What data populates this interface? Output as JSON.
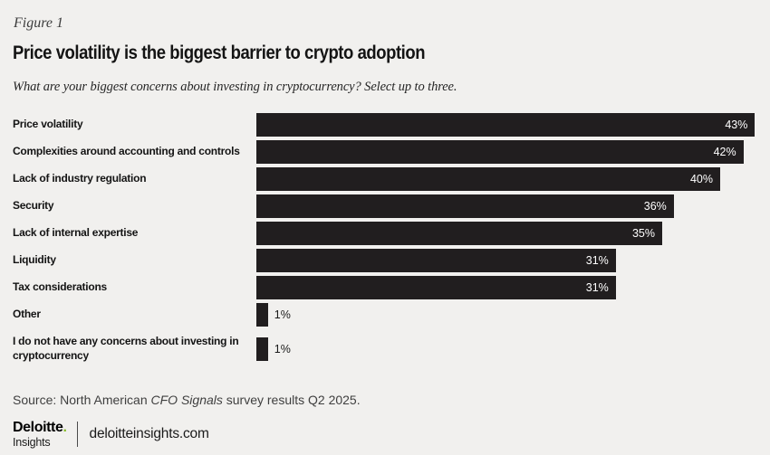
{
  "figure": {
    "label": "Figure 1"
  },
  "title": "Price volatility is the biggest barrier to crypto adoption",
  "subtitle": "What are your biggest concerns about investing in cryptocurrency? Select up to three.",
  "chart_data": {
    "type": "bar",
    "orientation": "horizontal",
    "title": "Price volatility is the biggest barrier to crypto adoption",
    "categories": [
      "Price volatility",
      "Complexities around accounting and controls",
      "Lack of industry regulation",
      "Security",
      "Lack of internal expertise",
      "Liquidity",
      "Tax considerations",
      "Other",
      "I do not have any concerns about investing in cryptocurrency"
    ],
    "values": [
      43,
      42,
      40,
      36,
      35,
      31,
      31,
      1,
      1
    ],
    "value_labels": [
      "43%",
      "42%",
      "40%",
      "36%",
      "35%",
      "31%",
      "31%",
      "1%",
      "1%"
    ],
    "unit": "%",
    "xlim": [
      0,
      43.5
    ],
    "grid": false,
    "legend": false,
    "bar_color": "#211e1f",
    "background_color": "#f1f0ee",
    "inside_value_color": "#ffffff",
    "outside_value_color": "#1a1a1a"
  },
  "source": {
    "prefix": "Source: North American ",
    "italic_text": "CFO Signals",
    "suffix": " survey results Q2 2025."
  },
  "footer": {
    "brand_name": "Deloitte",
    "brand_dot": ".",
    "brand_sub": "Insights",
    "site": "deloitteinsights.com",
    "brand_green": "#86bc25"
  }
}
